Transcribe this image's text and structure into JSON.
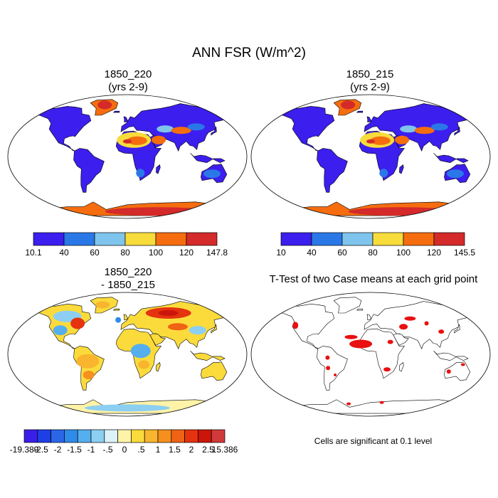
{
  "title": "ANN FSR (W/m^2)",
  "panels": [
    {
      "id": "case1",
      "title_line1": "1850_220",
      "title_line2": "(yrs 2-9)",
      "colorbar": {
        "colors": [
          "#3c1eee",
          "#2a78e8",
          "#7fc4ec",
          "#f7dc3b",
          "#f56d0f",
          "#d42a2a"
        ],
        "labels": [
          "10.1",
          "40",
          "60",
          "80",
          "100",
          "120",
          "147.8"
        ]
      }
    },
    {
      "id": "case2",
      "title_line1": "1850_215",
      "title_line2": "(yrs 2-9)",
      "colorbar": {
        "colors": [
          "#3c1eee",
          "#2a78e8",
          "#7fc4ec",
          "#f7dc3b",
          "#f56d0f",
          "#d42a2a"
        ],
        "labels": [
          "10",
          "40",
          "60",
          "80",
          "100",
          "120",
          "145.5"
        ]
      }
    },
    {
      "id": "difference",
      "title_line1": "1850_220",
      "title_line2": "- 1850_215",
      "colorbar": {
        "colors": [
          "#3a1ee8",
          "#1f3fe6",
          "#2a66e6",
          "#2f8be9",
          "#55aeee",
          "#8ccff2",
          "#dcf2f8",
          "#fff3a8",
          "#fbdb3c",
          "#f8b52d",
          "#f5901f",
          "#f06214",
          "#e4330e",
          "#cc150a",
          "#d13a3a"
        ],
        "labels": [
          "-19.389",
          "-2.5",
          "-2",
          "-1.5",
          "-1",
          "-.5",
          "0",
          ".5",
          "1",
          "1.5",
          "2",
          "2.5",
          "15.386"
        ]
      }
    },
    {
      "id": "ttest",
      "title_line1": "T-Test of two Case means at each grid point",
      "note": "Cells are significant at 0.1 level",
      "significant_color": "#e81010"
    }
  ]
}
